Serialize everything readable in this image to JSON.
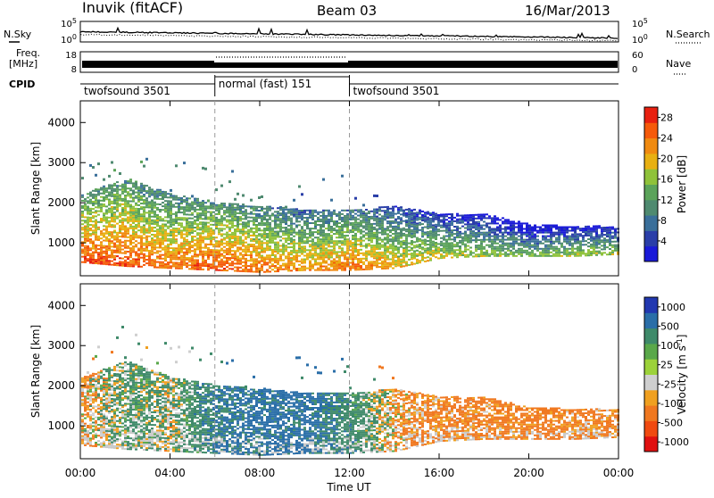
{
  "header": {
    "station": "Inuvik (fitACF)",
    "beam": "Beam 03",
    "date": "16/Mar/2013"
  },
  "side_labels": {
    "nsky": "N.Sky",
    "freq_line1": "Freq.",
    "freq_line2": "[MHz]",
    "cpid": "CPID",
    "nsearch": "N.Search",
    "nave": "Nave"
  },
  "noise_panel": {
    "left_ticks": [
      "10^5",
      "10^0"
    ],
    "right_ticks": [
      "10^5",
      "10^0"
    ]
  },
  "freq_panel": {
    "left_ticks": [
      "18",
      "8"
    ],
    "right_ticks": [
      "60",
      "0"
    ]
  },
  "cpid_segments": [
    {
      "label": "twofsound 3501",
      "start_h": 0,
      "end_h": 6
    },
    {
      "label": "normal (fast) 151",
      "start_h": 6,
      "end_h": 12
    },
    {
      "label": "twofsound 3501",
      "start_h": 12,
      "end_h": 24
    }
  ],
  "colors": {
    "power_scale": [
      "#1a1ad8",
      "#2a3ea8",
      "#3a6f9a",
      "#4f8a70",
      "#5ba35a",
      "#8fc23a",
      "#e8b012",
      "#f08a10",
      "#f55a0a",
      "#e82010",
      "#d80000"
    ],
    "velocity_scale": [
      "#2238b0",
      "#2a6ea8",
      "#3f8a6a",
      "#5aa84a",
      "#9cd23a",
      "#cfcfcf",
      "#f0a020",
      "#f07820",
      "#f04a10",
      "#e01010"
    ],
    "ground_scatter": "#c8c8c8"
  },
  "chart_data": [
    {
      "type": "heatmap",
      "title": "",
      "xlabel": "Time UT",
      "ylabel": "Slant Range [km]",
      "x_ticks": [
        "00:00",
        "04:00",
        "08:00",
        "12:00",
        "16:00",
        "20:00",
        "00:00"
      ],
      "xlim_hours": [
        0,
        24
      ],
      "y_ticks": [
        1000,
        2000,
        3000,
        4000
      ],
      "ylim": [
        180,
        4540
      ],
      "colorbar": {
        "label": "Power [dB]",
        "ticks": [
          4,
          8,
          12,
          16,
          20,
          24,
          28
        ],
        "range": [
          0,
          30
        ]
      },
      "scatter_envelope": {
        "hours": [
          0,
          2,
          4,
          6,
          8,
          10,
          12,
          14,
          16,
          18,
          20,
          22,
          24
        ],
        "range_low_km": [
          500,
          400,
          350,
          300,
          250,
          300,
          300,
          350,
          600,
          650,
          650,
          650,
          700
        ],
        "range_high_km": [
          2200,
          2600,
          2200,
          2000,
          1900,
          1800,
          1800,
          1900,
          1700,
          1700,
          1450,
          1400,
          1400
        ],
        "peak_power_db": [
          28,
          28,
          26,
          28,
          26,
          24,
          26,
          22,
          20,
          18,
          16,
          18,
          18
        ]
      }
    },
    {
      "type": "heatmap",
      "title": "",
      "xlabel": "Time UT",
      "ylabel": "Slant Range [km]",
      "x_ticks": [
        "00:00",
        "04:00",
        "08:00",
        "12:00",
        "16:00",
        "20:00",
        "00:00"
      ],
      "xlim_hours": [
        0,
        24
      ],
      "y_ticks": [
        1000,
        2000,
        3000,
        4000
      ],
      "ylim": [
        180,
        4540
      ],
      "colorbar": {
        "label": "Velocity [m s^-1]",
        "ticks": [
          "1000",
          "500",
          "100",
          "25",
          "-25",
          "-100",
          "-500",
          "-1000"
        ]
      },
      "scatter_envelope": {
        "hours": [
          0,
          2,
          4,
          6,
          8,
          10,
          12,
          14,
          16,
          18,
          20,
          22,
          24
        ],
        "range_low_km": [
          500,
          400,
          350,
          300,
          250,
          300,
          300,
          350,
          600,
          650,
          650,
          650,
          700
        ],
        "range_high_km": [
          2200,
          2600,
          2200,
          2000,
          1900,
          1800,
          1800,
          1900,
          1700,
          1700,
          1450,
          1400,
          1400
        ],
        "dominant_velocity_ms": [
          -100,
          100,
          25,
          300,
          400,
          400,
          200,
          -100,
          -150,
          -150,
          -200,
          -150,
          -150
        ]
      }
    }
  ]
}
